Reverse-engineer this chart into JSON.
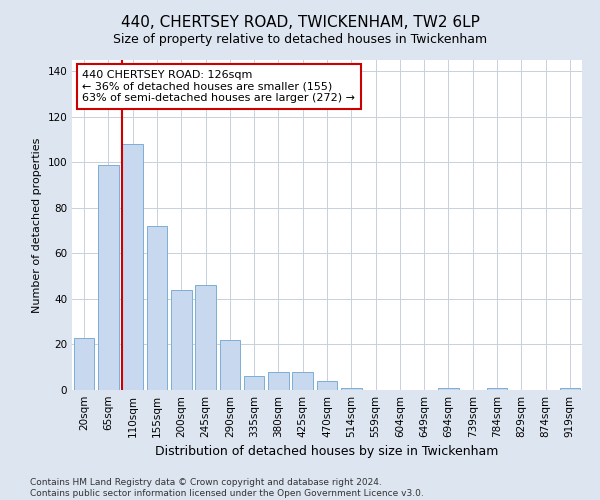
{
  "title": "440, CHERTSEY ROAD, TWICKENHAM, TW2 6LP",
  "subtitle": "Size of property relative to detached houses in Twickenham",
  "xlabel": "Distribution of detached houses by size in Twickenham",
  "ylabel": "Number of detached properties",
  "categories": [
    "20sqm",
    "65sqm",
    "110sqm",
    "155sqm",
    "200sqm",
    "245sqm",
    "290sqm",
    "335sqm",
    "380sqm",
    "425sqm",
    "470sqm",
    "514sqm",
    "559sqm",
    "604sqm",
    "649sqm",
    "694sqm",
    "739sqm",
    "784sqm",
    "829sqm",
    "874sqm",
    "919sqm"
  ],
  "values": [
    23,
    99,
    108,
    72,
    44,
    46,
    22,
    6,
    8,
    8,
    4,
    1,
    0,
    0,
    0,
    1,
    0,
    1,
    0,
    0,
    1
  ],
  "bar_color": "#c8d8ee",
  "bar_edge_color": "#7bafd4",
  "vline_color": "#cc0000",
  "annotation_line1": "440 CHERTSEY ROAD: 126sqm",
  "annotation_line2": "← 36% of detached houses are smaller (155)",
  "annotation_line3": "63% of semi-detached houses are larger (272) →",
  "annotation_box_facecolor": "#ffffff",
  "annotation_box_edgecolor": "#cc0000",
  "ylim": [
    0,
    145
  ],
  "yticks": [
    0,
    20,
    40,
    60,
    80,
    100,
    120,
    140
  ],
  "outer_bg": "#dde5f0",
  "plot_bg": "#ffffff",
  "grid_color": "#c8d0dc",
  "title_fontsize": 11,
  "subtitle_fontsize": 9,
  "xlabel_fontsize": 9,
  "ylabel_fontsize": 8,
  "tick_fontsize": 7.5,
  "annot_fontsize": 8,
  "footer_fontsize": 6.5,
  "footer": "Contains HM Land Registry data © Crown copyright and database right 2024.\nContains public sector information licensed under the Open Government Licence v3.0."
}
